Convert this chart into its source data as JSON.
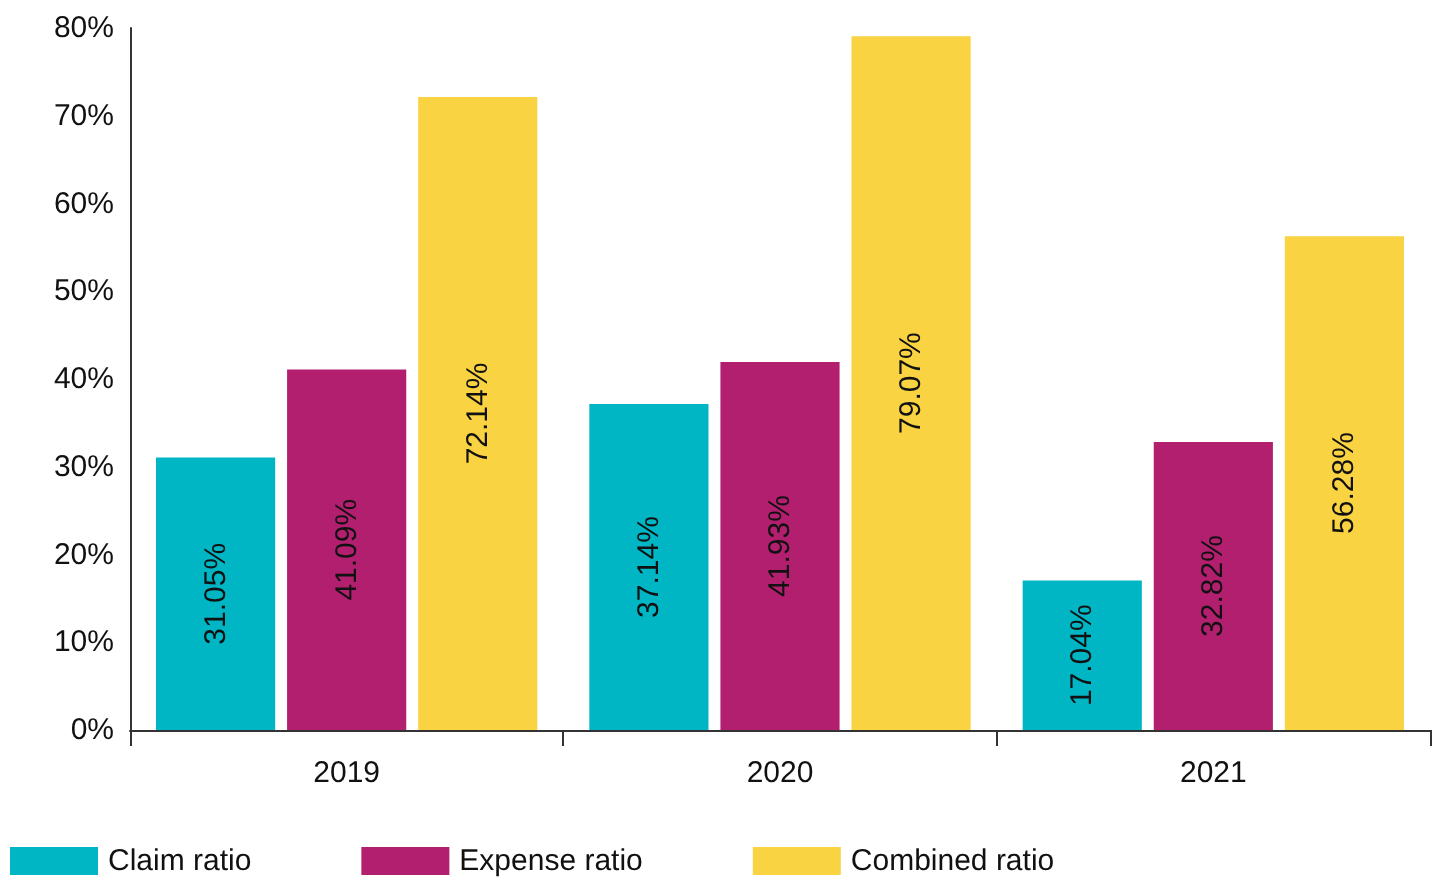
{
  "chart_data": {
    "type": "bar",
    "categories": [
      "2019",
      "2020",
      "2021"
    ],
    "series": [
      {
        "name": "Claim ratio",
        "color": "#00b5c4",
        "values": [
          31.05,
          37.14,
          17.04
        ],
        "value_labels": [
          "31.05%",
          "37.14%",
          "17.04%"
        ]
      },
      {
        "name": "Expense ratio",
        "color": "#b31f6f",
        "values": [
          41.09,
          41.93,
          32.82
        ],
        "value_labels": [
          "41.09%",
          "41.93%",
          "32.82%"
        ]
      },
      {
        "name": "Combined ratio",
        "color": "#f9d342",
        "values": [
          72.14,
          79.07,
          56.28
        ],
        "value_labels": [
          "72.14%",
          "79.07%",
          "56.28%"
        ]
      }
    ],
    "ylim": [
      0,
      80
    ],
    "yticks": [
      {
        "value": 0,
        "label": "0%"
      },
      {
        "value": 10,
        "label": "10%"
      },
      {
        "value": 20,
        "label": "20%"
      },
      {
        "value": 30,
        "label": "30%"
      },
      {
        "value": 40,
        "label": "40%"
      },
      {
        "value": 50,
        "label": "50%"
      },
      {
        "value": 60,
        "label": "60%"
      },
      {
        "value": 70,
        "label": "70%"
      },
      {
        "value": 80,
        "label": "80%"
      }
    ],
    "grid": false,
    "legend": "bottom left"
  }
}
